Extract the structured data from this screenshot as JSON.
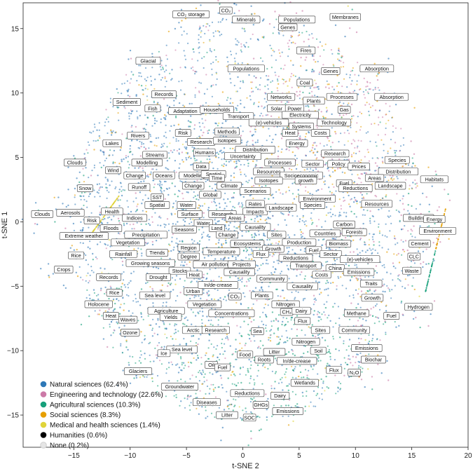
{
  "chart_data": {
    "type": "scatter",
    "xlabel": "t-SNE 2",
    "ylabel": "t-SNE 1",
    "xlim": [
      -19.5,
      20
    ],
    "ylim": [
      -17.5,
      17
    ],
    "xticks": [
      -15,
      -10,
      -5,
      0,
      5,
      10,
      15,
      20
    ],
    "yticks": [
      -15,
      -10,
      -5,
      0,
      5,
      10,
      15
    ],
    "grid": false,
    "legend_position": "bottom-left",
    "series": [
      {
        "name": "Natural sciences (62.4%)",
        "color": "#2e78b7",
        "share": 62.4
      },
      {
        "name": "Engineering and technology (22.6%)",
        "color": "#cc79a7",
        "share": 22.6
      },
      {
        "name": "Agricultural sciences (10.3%)",
        "color": "#17a07b",
        "share": 10.3
      },
      {
        "name": "Social sciences (8.3%)",
        "color": "#e69f00",
        "share": 8.3
      },
      {
        "name": "Medical and health sciences (1.4%)",
        "color": "#e0d43a",
        "share": 1.4
      },
      {
        "name": "Humanities (0.6%)",
        "color": "#000000",
        "share": 0.6
      },
      {
        "name": "None (0.2%)",
        "color": "#e6e6e6",
        "share": 0.2
      }
    ],
    "cluster_labels": [
      {
        "text": "CO₂ storage",
        "x": -4.6,
        "y": 16.1
      },
      {
        "text": "CO₂",
        "x": -1.5,
        "y": 16.4
      },
      {
        "text": "Minerals",
        "x": 0.3,
        "y": 15.7
      },
      {
        "text": "Populations",
        "x": 4.8,
        "y": 15.7
      },
      {
        "text": "Genes",
        "x": 4.0,
        "y": 15.1
      },
      {
        "text": "Membranes",
        "x": 9.1,
        "y": 15.9
      },
      {
        "text": "Fires",
        "x": 5.6,
        "y": 13.3
      },
      {
        "text": "Glacial",
        "x": -8.4,
        "y": 12.5
      },
      {
        "text": "Populations",
        "x": 0.3,
        "y": 11.9
      },
      {
        "text": "Genes",
        "x": 7.8,
        "y": 11.7
      },
      {
        "text": "Absorption",
        "x": 11.9,
        "y": 11.9
      },
      {
        "text": "Coal",
        "x": 5.5,
        "y": 10.8
      },
      {
        "text": "Records",
        "x": -7.0,
        "y": 9.9
      },
      {
        "text": "Networks",
        "x": 3.4,
        "y": 9.7
      },
      {
        "text": "Plants",
        "x": 6.3,
        "y": 9.4
      },
      {
        "text": "Processes",
        "x": 8.8,
        "y": 9.7
      },
      {
        "text": "Absorption",
        "x": 13.2,
        "y": 9.7
      },
      {
        "text": "Sediment",
        "x": -10.3,
        "y": 9.3
      },
      {
        "text": "Fish",
        "x": -8.0,
        "y": 8.8
      },
      {
        "text": "Adaptation",
        "x": -5.1,
        "y": 8.6
      },
      {
        "text": "Households",
        "x": -2.3,
        "y": 8.7
      },
      {
        "text": "Solar",
        "x": 3.0,
        "y": 8.8
      },
      {
        "text": "Power",
        "x": 4.6,
        "y": 8.8
      },
      {
        "text": "Gas",
        "x": 9.0,
        "y": 8.7
      },
      {
        "text": "Transport",
        "x": -0.4,
        "y": 8.2
      },
      {
        "text": "Electricity",
        "x": 5.1,
        "y": 8.3
      },
      {
        "text": "(e)-vehicles",
        "x": 2.3,
        "y": 7.7
      },
      {
        "text": "Technology",
        "x": 8.1,
        "y": 7.7
      },
      {
        "text": "Systems",
        "x": 5.2,
        "y": 7.4
      },
      {
        "text": "Risk",
        "x": -5.3,
        "y": 6.9
      },
      {
        "text": "Methods",
        "x": -1.4,
        "y": 7.0
      },
      {
        "text": "Heat",
        "x": 4.2,
        "y": 6.9
      },
      {
        "text": "Costs",
        "x": 6.9,
        "y": 6.9
      },
      {
        "text": "Rivers",
        "x": -9.3,
        "y": 6.7
      },
      {
        "text": "Research",
        "x": -3.7,
        "y": 6.2
      },
      {
        "text": "Isotopes",
        "x": -1.4,
        "y": 6.3
      },
      {
        "text": "Energy",
        "x": 4.8,
        "y": 6.1
      },
      {
        "text": "Lakes",
        "x": -11.6,
        "y": 6.1
      },
      {
        "text": "Distribution",
        "x": 1.1,
        "y": 5.6
      },
      {
        "text": "Research",
        "x": 8.2,
        "y": 5.3
      },
      {
        "text": "Humans",
        "x": -3.4,
        "y": 5.4
      },
      {
        "text": "Streams",
        "x": -7.8,
        "y": 5.2
      },
      {
        "text": "Uncertainty",
        "x": 0.0,
        "y": 5.1
      },
      {
        "text": "Clouds",
        "x": -14.9,
        "y": 4.6
      },
      {
        "text": "Modelling",
        "x": -8.5,
        "y": 4.6
      },
      {
        "text": "Data",
        "x": -3.7,
        "y": 4.3
      },
      {
        "text": "Processes",
        "x": 3.3,
        "y": 4.6
      },
      {
        "text": "Sector",
        "x": 6.2,
        "y": 4.5
      },
      {
        "text": "Policy",
        "x": 8.5,
        "y": 4.5
      },
      {
        "text": "Prices",
        "x": 10.3,
        "y": 4.3
      },
      {
        "text": "Species",
        "x": 13.7,
        "y": 4.8
      },
      {
        "text": "Wind",
        "x": -11.5,
        "y": 4.0
      },
      {
        "text": "Modelling",
        "x": -4.3,
        "y": 3.6
      },
      {
        "text": "Spatial",
        "x": -2.6,
        "y": 3.7
      },
      {
        "text": "Resources",
        "x": 2.3,
        "y": 3.9
      },
      {
        "text": "Distribution",
        "x": 13.8,
        "y": 3.9
      },
      {
        "text": "Change",
        "x": -9.6,
        "y": 3.6
      },
      {
        "text": "Oceans",
        "x": -7.0,
        "y": 3.6
      },
      {
        "text": "Time",
        "x": -2.3,
        "y": 3.4
      },
      {
        "text": "Socioeconomic",
        "x": 5.2,
        "y": 3.6
      },
      {
        "text": "Areas",
        "x": 11.7,
        "y": 3.4
      },
      {
        "text": "Isotopes",
        "x": 2.3,
        "y": 3.2
      },
      {
        "text": "growth",
        "x": 5.6,
        "y": 3.2
      },
      {
        "text": "Fuel",
        "x": 9.0,
        "y": 3.0
      },
      {
        "text": "Habitats",
        "x": 17.0,
        "y": 3.3
      },
      {
        "text": "Change",
        "x": -4.4,
        "y": 2.8
      },
      {
        "text": "Climate",
        "x": -1.2,
        "y": 2.8
      },
      {
        "text": "Landscape",
        "x": 13.1,
        "y": 2.8
      },
      {
        "text": "Runoff",
        "x": -9.2,
        "y": 2.7
      },
      {
        "text": "Reductions",
        "x": 10.0,
        "y": 2.6
      },
      {
        "text": "Snow",
        "x": -14.0,
        "y": 2.6
      },
      {
        "text": "Scenarios",
        "x": 1.1,
        "y": 2.4
      },
      {
        "text": "Global",
        "x": -2.9,
        "y": 2.1
      },
      {
        "text": "SST",
        "x": -7.6,
        "y": 1.9
      },
      {
        "text": "Environment",
        "x": 6.6,
        "y": 1.8
      },
      {
        "text": "Rates",
        "x": 1.1,
        "y": 1.4
      },
      {
        "text": "Species",
        "x": 6.2,
        "y": 1.3
      },
      {
        "text": "Resources",
        "x": 11.9,
        "y": 1.4
      },
      {
        "text": "Spatial",
        "x": -7.6,
        "y": 1.3
      },
      {
        "text": "Water",
        "x": -5.0,
        "y": 1.3
      },
      {
        "text": "Impacts",
        "x": 1.1,
        "y": 0.8
      },
      {
        "text": "Landscape",
        "x": 3.4,
        "y": 1.1
      },
      {
        "text": "Health",
        "x": -11.6,
        "y": 0.8
      },
      {
        "text": "Surface",
        "x": -4.7,
        "y": 0.6
      },
      {
        "text": "Research",
        "x": -1.8,
        "y": 0.6
      },
      {
        "text": "Clouds",
        "x": -17.8,
        "y": 0.6
      },
      {
        "text": "Aerosols",
        "x": -15.3,
        "y": 0.7
      },
      {
        "text": "Areas",
        "x": -0.7,
        "y": 0.3
      },
      {
        "text": "Buildings",
        "x": 15.6,
        "y": 0.3
      },
      {
        "text": "Energy",
        "x": 17.0,
        "y": 0.2
      },
      {
        "text": "Risk",
        "x": -13.4,
        "y": 0.1
      },
      {
        "text": "Indices",
        "x": -9.6,
        "y": 0.3
      },
      {
        "text": "Water",
        "x": -3.5,
        "y": -0.1
      },
      {
        "text": "Carbon",
        "x": 9.0,
        "y": -0.2
      },
      {
        "text": "Floods",
        "x": -11.7,
        "y": -0.5
      },
      {
        "text": "Seasons",
        "x": -5.2,
        "y": -0.6
      },
      {
        "text": "Land",
        "x": -2.3,
        "y": -0.5
      },
      {
        "text": "Causality",
        "x": 1.1,
        "y": -0.4
      },
      {
        "text": "Environment",
        "x": 17.3,
        "y": -0.7
      },
      {
        "text": "Extreme weather",
        "x": -14.1,
        "y": -1.1
      },
      {
        "text": "Precipitation",
        "x": -8.6,
        "y": -1.0
      },
      {
        "text": "Change",
        "x": -1.4,
        "y": -1.0
      },
      {
        "text": "Sites",
        "x": 3.0,
        "y": -1.0
      },
      {
        "text": "Countries",
        "x": 7.3,
        "y": -0.9
      },
      {
        "text": "Forests",
        "x": 9.9,
        "y": -0.8
      },
      {
        "text": "Vegetation",
        "x": -10.2,
        "y": -1.6
      },
      {
        "text": "Production",
        "x": 5.0,
        "y": -1.6
      },
      {
        "text": "Ecosystems",
        "x": 0.4,
        "y": -1.7
      },
      {
        "text": "Biomass",
        "x": 8.5,
        "y": -1.7
      },
      {
        "text": "Cement",
        "x": 15.7,
        "y": -1.7
      },
      {
        "text": "Region",
        "x": -4.8,
        "y": -2.0
      },
      {
        "text": "Growth",
        "x": 2.7,
        "y": -2.1
      },
      {
        "text": "Fuel",
        "x": 6.3,
        "y": -2.2
      },
      {
        "text": "Trends",
        "x": -7.6,
        "y": -2.4
      },
      {
        "text": "Temperature",
        "x": -1.9,
        "y": -2.3
      },
      {
        "text": "Flux",
        "x": 1.6,
        "y": -2.5
      },
      {
        "text": "Sector",
        "x": 7.8,
        "y": -2.5
      },
      {
        "text": "Rainfall",
        "x": -10.6,
        "y": -2.5
      },
      {
        "text": "Degree",
        "x": -4.8,
        "y": -2.7
      },
      {
        "text": "Reductions",
        "x": 4.7,
        "y": -2.8
      },
      {
        "text": "(e)-vehicles",
        "x": 10.4,
        "y": -2.9
      },
      {
        "text": "CLC",
        "x": 15.2,
        "y": -2.7
      },
      {
        "text": "Rice",
        "x": -14.8,
        "y": -2.6
      },
      {
        "text": "Growing seasons",
        "x": -8.2,
        "y": -3.2
      },
      {
        "text": "Air pollution",
        "x": -2.5,
        "y": -3.3
      },
      {
        "text": "Projects",
        "x": -0.1,
        "y": -3.3
      },
      {
        "text": "Transport",
        "x": 5.6,
        "y": -3.4
      },
      {
        "text": "China",
        "x": 8.2,
        "y": -3.6
      },
      {
        "text": "Stocks",
        "x": -5.6,
        "y": -3.8
      },
      {
        "text": "Causality",
        "x": -0.3,
        "y": -3.9
      },
      {
        "text": "Costs",
        "x": 7.0,
        "y": -4.1
      },
      {
        "text": "Emissions",
        "x": 10.3,
        "y": -3.9
      },
      {
        "text": "Waste",
        "x": 15.0,
        "y": -3.8
      },
      {
        "text": "Crops",
        "x": -15.9,
        "y": -3.7
      },
      {
        "text": "Heat",
        "x": -4.3,
        "y": -4.1
      },
      {
        "text": "Records",
        "x": -11.9,
        "y": -4.3
      },
      {
        "text": "Drought",
        "x": -7.5,
        "y": -4.3
      },
      {
        "text": "Community",
        "x": 2.6,
        "y": -4.4
      },
      {
        "text": "Traits",
        "x": 11.4,
        "y": -4.8
      },
      {
        "text": "Urban",
        "x": -4.4,
        "y": -5.4
      },
      {
        "text": "In/de-crease",
        "x": -2.2,
        "y": -4.9
      },
      {
        "text": "Causality",
        "x": 5.3,
        "y": -5.0
      },
      {
        "text": "Rice",
        "x": -11.4,
        "y": -5.5
      },
      {
        "text": "Sea level",
        "x": -7.8,
        "y": -5.7
      },
      {
        "text": "CO₂",
        "x": -0.7,
        "y": -5.8
      },
      {
        "text": "Plants",
        "x": 1.7,
        "y": -5.7
      },
      {
        "text": "Growth",
        "x": 11.5,
        "y": -5.9
      },
      {
        "text": "Holocene",
        "x": -12.8,
        "y": -6.4
      },
      {
        "text": "Vegetation",
        "x": -3.4,
        "y": -6.4
      },
      {
        "text": "Nitrogen",
        "x": 3.8,
        "y": -6.4
      },
      {
        "text": "Hydrogen",
        "x": 15.6,
        "y": -6.6
      },
      {
        "text": "Agriculture",
        "x": -6.8,
        "y": -6.9
      },
      {
        "text": "CH₄",
        "x": 3.9,
        "y": -7.0
      },
      {
        "text": "Dairy",
        "x": 5.2,
        "y": -6.9
      },
      {
        "text": "Concentrations",
        "x": -1.0,
        "y": -7.1
      },
      {
        "text": "Methane",
        "x": 10.1,
        "y": -7.1
      },
      {
        "text": "Fuel",
        "x": 13.2,
        "y": -7.3
      },
      {
        "text": "Heat",
        "x": -11.7,
        "y": -7.3
      },
      {
        "text": "Yields",
        "x": -6.4,
        "y": -7.4
      },
      {
        "text": "Waves",
        "x": -10.2,
        "y": -7.6
      },
      {
        "text": "Flux",
        "x": 5.3,
        "y": -7.7
      },
      {
        "text": "Arctic",
        "x": -4.4,
        "y": -8.4
      },
      {
        "text": "Research",
        "x": -2.4,
        "y": -8.4
      },
      {
        "text": "Sea",
        "x": 1.3,
        "y": -8.5
      },
      {
        "text": "Sites",
        "x": 6.9,
        "y": -8.4
      },
      {
        "text": "Community",
        "x": 9.9,
        "y": -8.4
      },
      {
        "text": "Ozone",
        "x": -10.0,
        "y": -8.6
      },
      {
        "text": "Nitrogen",
        "x": 5.6,
        "y": -9.3
      },
      {
        "text": "Emissions",
        "x": 11.0,
        "y": -9.8
      },
      {
        "text": "Sea level",
        "x": -5.4,
        "y": -9.9
      },
      {
        "text": "Soil",
        "x": 6.7,
        "y": -10.0
      },
      {
        "text": "Litter",
        "x": 2.8,
        "y": -10.1
      },
      {
        "text": "Ice",
        "x": -7.0,
        "y": -10.2
      },
      {
        "text": "Food",
        "x": 0.2,
        "y": -10.3
      },
      {
        "text": "Roots",
        "x": 1.9,
        "y": -10.7
      },
      {
        "text": "In/de-crease",
        "x": 4.8,
        "y": -10.8
      },
      {
        "text": "Biochar",
        "x": 11.6,
        "y": -10.7
      },
      {
        "text": "Oil",
        "x": -2.8,
        "y": -11.1
      },
      {
        "text": "Fuel",
        "x": -1.8,
        "y": -11.3
      },
      {
        "text": "Glaciers",
        "x": -9.3,
        "y": -11.6
      },
      {
        "text": "Flux",
        "x": 8.1,
        "y": -11.5
      },
      {
        "text": "N₂O",
        "x": 9.9,
        "y": -11.7
      },
      {
        "text": "Wetlands",
        "x": 5.5,
        "y": -12.5
      },
      {
        "text": "Groundwater",
        "x": -5.6,
        "y": -12.8
      },
      {
        "text": "Reductions",
        "x": 0.4,
        "y": -13.3
      },
      {
        "text": "Dairy",
        "x": 3.3,
        "y": -13.5
      },
      {
        "text": "Diseases",
        "x": -3.2,
        "y": -14.0
      },
      {
        "text": "GHGs",
        "x": 1.6,
        "y": -14.2
      },
      {
        "text": "Emissions",
        "x": 4.0,
        "y": -14.7
      },
      {
        "text": "Litter",
        "x": -1.4,
        "y": -15.0
      },
      {
        "text": "SOC",
        "x": 0.6,
        "y": -15.2
      }
    ]
  }
}
